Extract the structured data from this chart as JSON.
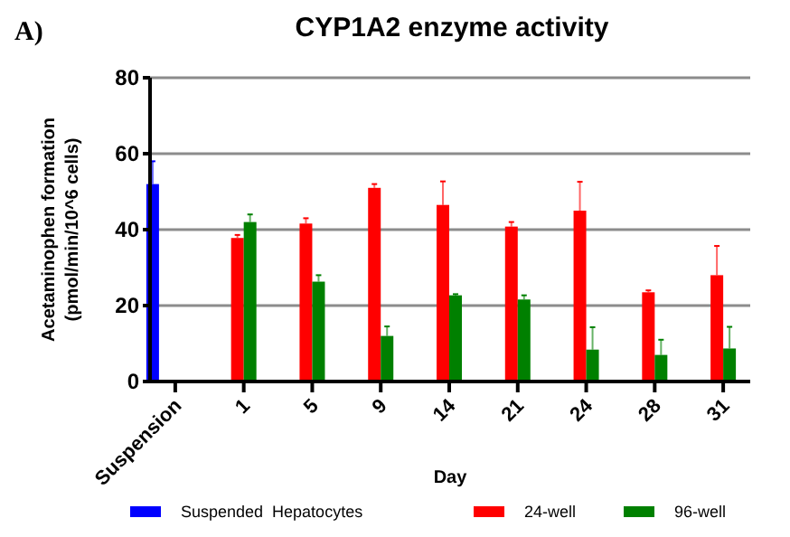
{
  "chart_data": {
    "type": "bar",
    "title": "CYP1A2 enzyme activity",
    "xlabel": "Day",
    "ylabel": "Acetaminophen formation\n(pmol/min/10^6 cells)",
    "annotations": [
      "A)"
    ],
    "categories": [
      "Suspension",
      "1",
      "5",
      "9",
      "14",
      "21",
      "24",
      "28",
      "31"
    ],
    "series": [
      {
        "name": "Suspended  Hepatocytes",
        "color": "#0000ff",
        "values": [
          52,
          null,
          null,
          null,
          null,
          null,
          null,
          null,
          null
        ],
        "errors": [
          6,
          null,
          null,
          null,
          null,
          null,
          null,
          null,
          null
        ]
      },
      {
        "name": "24-well",
        "color": "#ff0000",
        "values": [
          null,
          37.8,
          41.6,
          51,
          46.5,
          40.8,
          45,
          23.5,
          28
        ],
        "errors": [
          null,
          0.8,
          1.4,
          1,
          6.2,
          1.2,
          7.6,
          0.5,
          7.7
        ]
      },
      {
        "name": "96-well",
        "color": "#008000",
        "values": [
          null,
          42,
          26.3,
          12,
          22.7,
          21.6,
          8.4,
          7,
          8.7
        ],
        "errors": [
          null,
          2,
          1.7,
          2.5,
          0.3,
          1.1,
          5.9,
          4,
          5.7
        ]
      }
    ],
    "ylim": [
      0,
      80
    ],
    "yticks": [
      0,
      20,
      40,
      60,
      80
    ],
    "grid": "y",
    "legend": "bottom"
  }
}
